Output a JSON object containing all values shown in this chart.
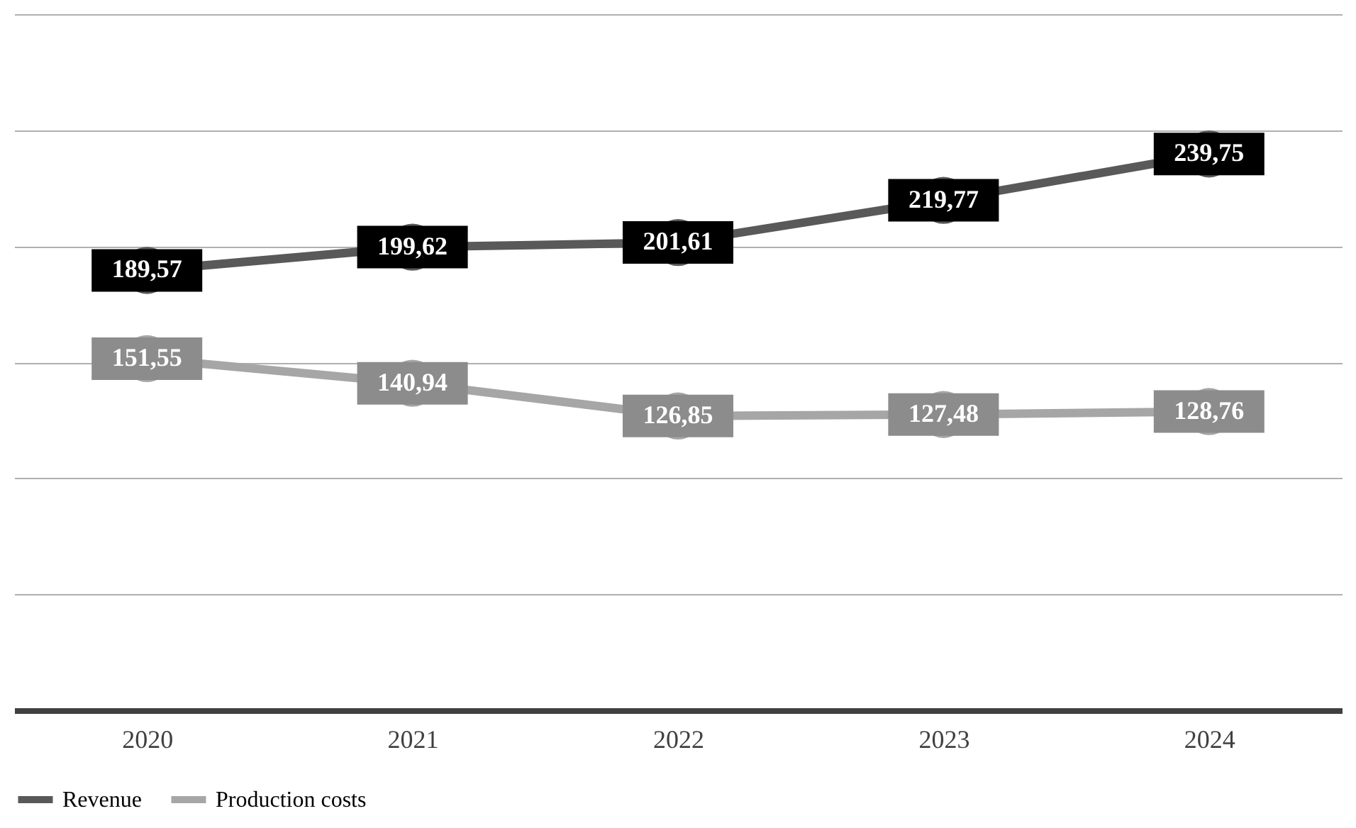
{
  "chart_data": {
    "type": "line",
    "categories": [
      "2020",
      "2021",
      "2022",
      "2023",
      "2024"
    ],
    "series": [
      {
        "name": "Revenue",
        "color": "#595959",
        "values": [
          189.57,
          199.62,
          201.61,
          219.77,
          239.75
        ],
        "value_labels": [
          "189,57",
          "199,62",
          "201,61",
          "219,77",
          "239,75"
        ]
      },
      {
        "name": "Production costs",
        "color": "#a6a6a6",
        "values": [
          151.55,
          140.94,
          126.85,
          127.48,
          128.76
        ],
        "value_labels": [
          "151,55",
          "140,94",
          "126,85",
          "127,48",
          "128,76"
        ]
      }
    ],
    "ylim": [
      0,
      300
    ],
    "yticks": [
      {
        "value": 0,
        "label": null
      },
      {
        "value": 50,
        "label": null
      },
      {
        "value": 100,
        "label": null
      },
      {
        "value": 150,
        "label": null
      },
      {
        "value": 200,
        "label": null
      },
      {
        "value": 250,
        "label": null
      },
      {
        "value": 300,
        "label": null
      }
    ],
    "tick_labels": "x",
    "grid": "y",
    "legend": "bottom",
    "marker": "circle",
    "line_style": "solid"
  }
}
